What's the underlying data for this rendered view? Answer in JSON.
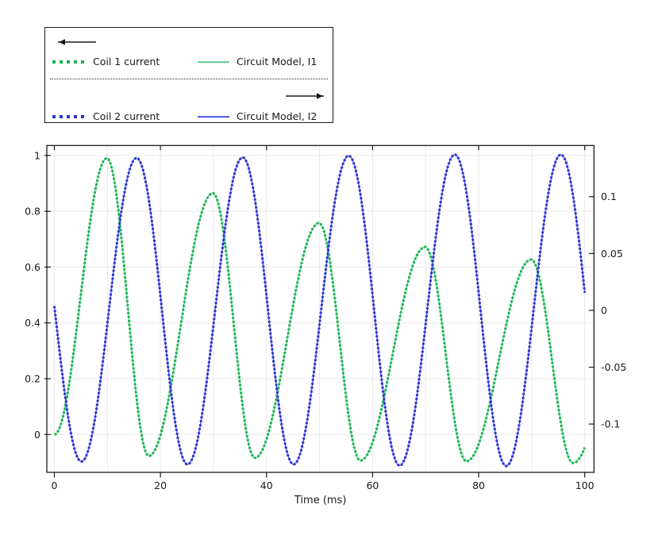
{
  "legend": {
    "left_axis_arrow": "points-left (first group refers to left y-axis)",
    "right_axis_arrow": "points-right (second group refers to right y-axis)",
    "groups": [
      {
        "dotted_label": "Coil 1 current",
        "solid_label": "Circuit Model, I1",
        "dot_color": "#17b54e",
        "line_color": "#5fc98b",
        "axis": "left"
      },
      {
        "dotted_label": "Coil 2 current",
        "solid_label": "Circuit Model, I2",
        "dot_color": "#2c34d0",
        "line_color": "#4a55e0",
        "axis": "right"
      }
    ]
  },
  "chart_data": {
    "type": "line",
    "title": "",
    "xlabel": "Time (ms)",
    "ylabel_left": "",
    "ylabel_right": "",
    "grid": true,
    "axes": {
      "x": {
        "range": [
          -1.42,
          101.74
        ],
        "ticks": [
          0,
          20,
          40,
          60,
          80,
          100
        ],
        "grid_step": 10,
        "data_span": [
          0,
          100
        ]
      },
      "y_left": {
        "range": [
          -0.1357,
          1.0356
        ],
        "ticks": [
          1,
          0.8,
          0.6,
          0.4,
          0.2,
          0
        ]
      },
      "y_right": {
        "range": [
          -0.1425,
          0.145
        ],
        "ticks": [
          0.1,
          0.05,
          0,
          -0.05,
          -0.1
        ]
      }
    },
    "interpolation": "half-cosine between successive extrema keypoints, clipped to x in [0,100]",
    "series": [
      {
        "name": "Coil 1 current / Circuit Model, I1",
        "axis": "left",
        "dot_color": "#17b54e",
        "line_color": "#5fc98b",
        "keypoints": [
          [
            0,
            0
          ],
          [
            9.9,
            0.99
          ],
          [
            17.8,
            -0.077
          ],
          [
            29.9,
            0.865
          ],
          [
            37.8,
            -0.084
          ],
          [
            49.9,
            0.758
          ],
          [
            57.7,
            -0.093
          ],
          [
            69.9,
            0.672
          ],
          [
            77.7,
            -0.096
          ],
          [
            89.9,
            0.627
          ],
          [
            97.8,
            -0.102
          ],
          [
            110,
            0.6
          ]
        ]
      },
      {
        "name": "Coil 2 current / Circuit Model, I2",
        "axis": "right",
        "dot_color": "#2c34d0",
        "line_color": "#4a55e0",
        "keypoints": [
          [
            -4.6,
            0.12
          ],
          [
            5.1,
            -0.133
          ],
          [
            15.5,
            0.134
          ],
          [
            25.1,
            -0.1355
          ],
          [
            35.5,
            0.1345
          ],
          [
            45.1,
            -0.1355
          ],
          [
            55.5,
            0.136
          ],
          [
            65.1,
            -0.1365
          ],
          [
            75.5,
            0.137
          ],
          [
            85.2,
            -0.137
          ],
          [
            95.5,
            0.137
          ],
          [
            105.2,
            -0.137
          ]
        ]
      }
    ],
    "colors": {
      "grid": "#e9e9e9",
      "axis": "#1a1a1a",
      "text": "#1a1a1a"
    }
  }
}
